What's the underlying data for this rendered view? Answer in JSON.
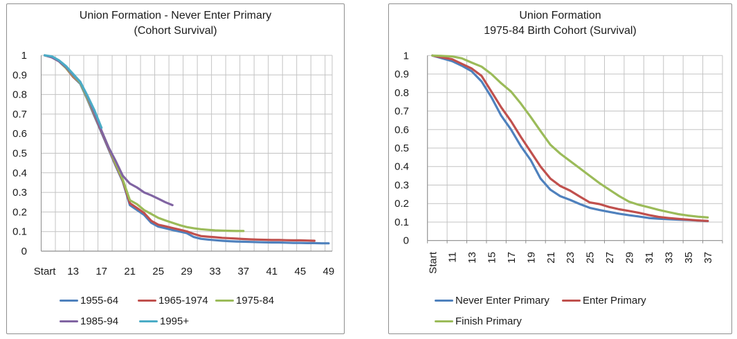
{
  "style": {
    "background": "#FFFFFF",
    "grid_color": "#C3C3C3",
    "axis_color": "#8C8C8C",
    "text_color": "#1A1A1A",
    "border_color": "#8E8E8E"
  },
  "chart_data": [
    {
      "type": "line",
      "title": "Union Formation - Never Enter Primary (Cohort Survival)",
      "title_lines": [
        "Union Formation - Never Enter Primary",
        "(Cohort Survival)"
      ],
      "y_axis": {
        "min": 0,
        "max": 1,
        "step": 0.1,
        "tick_labels": [
          "1",
          "0.9",
          "0.8",
          "0.7",
          "0.6",
          "0.5",
          "0.4",
          "0.3",
          "0.2",
          "0.1",
          "0"
        ]
      },
      "x_axis": {
        "categories": [
          "Start",
          "10",
          "11",
          "12",
          "13",
          "14",
          "15",
          "16",
          "17",
          "18",
          "19",
          "20",
          "21",
          "22",
          "23",
          "24",
          "25",
          "26",
          "27",
          "28",
          "29",
          "30",
          "31",
          "32",
          "33",
          "34",
          "35",
          "36",
          "37",
          "38",
          "39",
          "40",
          "41",
          "42",
          "43",
          "44",
          "45",
          "46",
          "47",
          "48",
          "49"
        ],
        "tick_labels": [
          "Start",
          "13",
          "17",
          "21",
          "25",
          "29",
          "33",
          "37",
          "41",
          "45",
          "49"
        ],
        "tick_label_indices": [
          0,
          4,
          8,
          12,
          16,
          20,
          24,
          28,
          32,
          36,
          40
        ],
        "rotated": false,
        "gridline_every": 2
      },
      "legend": {
        "position": "bottom",
        "rows": [
          [
            "1955-64",
            "1965-1974",
            "1975-84"
          ],
          [
            "1985-94",
            "1995+"
          ]
        ]
      },
      "series": [
        {
          "name": "1955-64",
          "color": "#4F81BD",
          "values": [
            1.0,
            0.99,
            0.97,
            0.935,
            0.89,
            0.855,
            0.775,
            0.69,
            0.605,
            0.52,
            0.435,
            0.355,
            0.235,
            0.21,
            0.185,
            0.145,
            0.125,
            0.117,
            0.108,
            0.1,
            0.092,
            0.072,
            0.063,
            0.059,
            0.056,
            0.053,
            0.051,
            0.049,
            0.048,
            0.047,
            0.046,
            0.045,
            0.044,
            0.044,
            0.043,
            0.042,
            0.042,
            0.041,
            0.041,
            0.04,
            0.04
          ]
        },
        {
          "name": "1965-1974",
          "color": "#C0504D",
          "values": [
            1.0,
            0.99,
            0.97,
            0.935,
            0.89,
            0.86,
            0.78,
            0.695,
            0.61,
            0.525,
            0.44,
            0.36,
            0.245,
            0.22,
            0.195,
            0.155,
            0.135,
            0.127,
            0.118,
            0.11,
            0.101,
            0.088,
            0.077,
            0.074,
            0.071,
            0.068,
            0.066,
            0.064,
            0.062,
            0.06,
            0.059,
            0.058,
            0.057,
            0.057,
            0.056,
            0.055,
            0.055,
            0.054,
            0.053,
            null,
            null
          ]
        },
        {
          "name": "1975-84",
          "color": "#9BBB59",
          "values": [
            1.0,
            0.99,
            0.97,
            0.935,
            0.895,
            0.86,
            0.78,
            0.7,
            0.615,
            0.53,
            0.445,
            0.365,
            0.26,
            0.24,
            0.21,
            0.19,
            0.17,
            0.157,
            0.145,
            0.133,
            0.123,
            0.117,
            0.112,
            0.109,
            0.106,
            0.105,
            0.104,
            0.103,
            0.103,
            null,
            null,
            null,
            null,
            null,
            null,
            null,
            null,
            null,
            null,
            null,
            null
          ]
        },
        {
          "name": "1985-94",
          "color": "#8064A2",
          "values": [
            1.0,
            0.99,
            0.97,
            0.94,
            0.9,
            0.865,
            0.79,
            0.705,
            0.615,
            0.53,
            0.46,
            0.385,
            0.345,
            0.325,
            0.3,
            0.285,
            0.268,
            0.25,
            0.235,
            null,
            null,
            null,
            null,
            null,
            null,
            null,
            null,
            null,
            null,
            null,
            null,
            null,
            null,
            null,
            null,
            null,
            null,
            null,
            null,
            null,
            null
          ]
        },
        {
          "name": "1995+",
          "color": "#4BACC6",
          "values": [
            1.0,
            0.995,
            0.975,
            0.945,
            0.905,
            0.865,
            0.795,
            0.72,
            0.63,
            null,
            null,
            null,
            null,
            null,
            null,
            null,
            null,
            null,
            null,
            null,
            null,
            null,
            null,
            null,
            null,
            null,
            null,
            null,
            null,
            null,
            null,
            null,
            null,
            null,
            null,
            null,
            null,
            null,
            null,
            null,
            null
          ]
        }
      ]
    },
    {
      "type": "line",
      "title": "Union Formation 1975-84 Birth Cohort (Survival)",
      "title_lines": [
        "Union Formation",
        "1975-84 Birth Cohort (Survival)"
      ],
      "y_axis": {
        "min": 0,
        "max": 1,
        "step": 0.1,
        "tick_labels": [
          "1",
          "0.9",
          "0.8",
          "0.7",
          "0.6",
          "0.5",
          "0.4",
          "0.3",
          "0.2",
          "0.1",
          "0"
        ]
      },
      "x_axis": {
        "categories": [
          "Start",
          "10",
          "11",
          "12",
          "13",
          "14",
          "15",
          "16",
          "17",
          "18",
          "19",
          "20",
          "21",
          "22",
          "23",
          "24",
          "25",
          "26",
          "27",
          "28",
          "29",
          "30",
          "31",
          "32",
          "33",
          "34",
          "35",
          "36",
          "37",
          "38"
        ],
        "tick_labels": [
          "Start",
          "11",
          "13",
          "15",
          "17",
          "19",
          "21",
          "23",
          "25",
          "27",
          "29",
          "31",
          "33",
          "35",
          "37"
        ],
        "tick_label_indices": [
          0,
          2,
          4,
          6,
          8,
          10,
          12,
          14,
          16,
          18,
          20,
          22,
          24,
          26,
          28
        ],
        "rotated": true,
        "gridline_every": 2
      },
      "legend": {
        "position": "bottom",
        "rows": [
          [
            "Never Enter Primary",
            "Enter Primary"
          ],
          [
            "Finish Primary"
          ]
        ]
      },
      "series": [
        {
          "name": "Never Enter Primary",
          "color": "#4F81BD",
          "values": [
            1.0,
            0.985,
            0.97,
            0.945,
            0.915,
            0.86,
            0.775,
            0.675,
            0.6,
            0.51,
            0.435,
            0.335,
            0.275,
            0.24,
            0.22,
            0.197,
            0.177,
            0.165,
            0.155,
            0.145,
            0.137,
            0.13,
            0.122,
            0.118,
            0.115,
            0.113,
            0.111,
            0.108,
            0.105,
            null
          ]
        },
        {
          "name": "Enter Primary",
          "color": "#C0504D",
          "values": [
            1.0,
            0.99,
            0.98,
            0.955,
            0.93,
            0.89,
            0.805,
            0.72,
            0.645,
            0.56,
            0.48,
            0.4,
            0.335,
            0.295,
            0.27,
            0.237,
            0.206,
            0.197,
            0.181,
            0.169,
            0.16,
            0.15,
            0.138,
            0.128,
            0.122,
            0.117,
            0.113,
            0.109,
            0.106,
            null
          ]
        },
        {
          "name": "Finish Primary",
          "color": "#9BBB59",
          "values": [
            1.0,
            0.998,
            0.995,
            0.985,
            0.962,
            0.94,
            0.9,
            0.85,
            0.805,
            0.74,
            0.668,
            0.592,
            0.518,
            0.47,
            0.43,
            0.39,
            0.35,
            0.31,
            0.275,
            0.24,
            0.21,
            0.193,
            0.18,
            0.166,
            0.154,
            0.143,
            0.135,
            0.129,
            0.125,
            null
          ]
        }
      ]
    }
  ]
}
